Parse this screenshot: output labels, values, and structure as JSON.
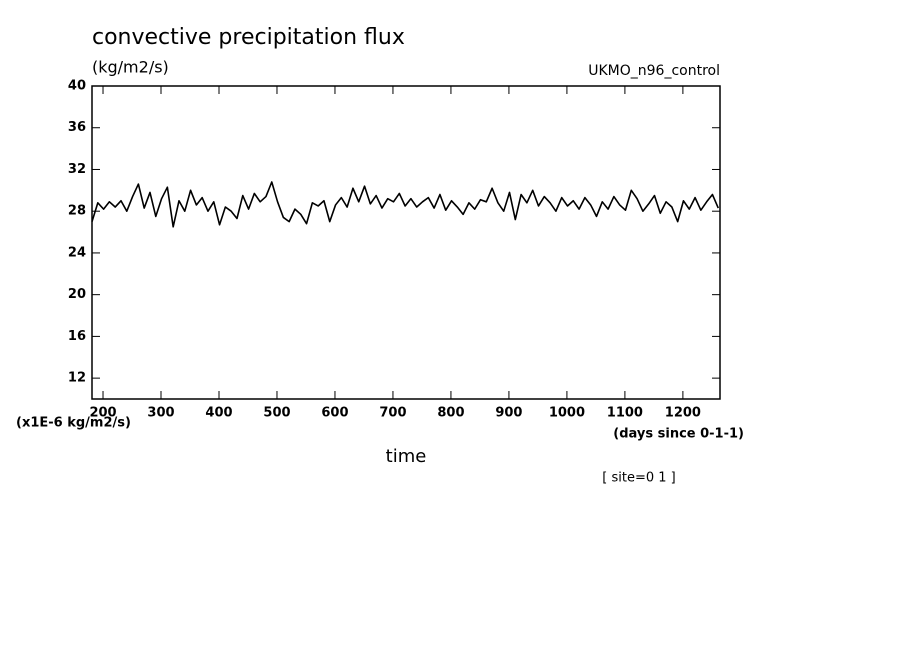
{
  "chart_data": {
    "type": "line",
    "title": "convective precipitation flux",
    "units": "(kg/m2/s)",
    "dataset": "UKMO_n96_control",
    "y_scale_label": "(x1E-6 kg/m2/s)",
    "x_units": "(days since 0-1-1)",
    "x_label": "time",
    "site_label": "[ site=0 1 ]",
    "xlim": [
      181,
      1264
    ],
    "ylim": [
      10,
      40
    ],
    "xticks": [
      200,
      300,
      400,
      500,
      600,
      700,
      800,
      900,
      1000,
      1100,
      1200
    ],
    "yticks": [
      12,
      16,
      20,
      24,
      28,
      32,
      36,
      40
    ],
    "x": [
      181,
      191,
      201,
      211,
      221,
      231,
      241,
      251,
      261,
      271,
      281,
      291,
      301,
      311,
      321,
      331,
      341,
      351,
      361,
      371,
      381,
      391,
      401,
      411,
      421,
      431,
      441,
      451,
      461,
      471,
      481,
      491,
      501,
      511,
      521,
      531,
      541,
      551,
      561,
      571,
      581,
      591,
      601,
      611,
      621,
      631,
      641,
      651,
      661,
      671,
      681,
      691,
      701,
      711,
      721,
      731,
      741,
      751,
      761,
      771,
      781,
      791,
      801,
      811,
      821,
      831,
      841,
      851,
      861,
      871,
      881,
      891,
      901,
      911,
      921,
      931,
      941,
      951,
      961,
      971,
      981,
      991,
      1001,
      1011,
      1021,
      1031,
      1041,
      1051,
      1061,
      1071,
      1081,
      1091,
      1101,
      1111,
      1121,
      1131,
      1141,
      1151,
      1161,
      1171,
      1181,
      1191,
      1201,
      1211,
      1221,
      1231,
      1241,
      1251,
      1261
    ],
    "series": [
      {
        "name": "convective precipitation flux",
        "color": "#000000",
        "values": [
          27.0,
          28.8,
          28.2,
          28.9,
          28.4,
          29.0,
          28.0,
          29.4,
          30.6,
          28.3,
          29.8,
          27.5,
          29.2,
          30.3,
          26.5,
          29.0,
          28.0,
          30.0,
          28.6,
          29.3,
          28.0,
          28.9,
          26.7,
          28.4,
          28.0,
          27.3,
          29.5,
          28.2,
          29.7,
          28.9,
          29.4,
          30.8,
          28.9,
          27.4,
          27.0,
          28.2,
          27.7,
          26.8,
          28.8,
          28.5,
          29.0,
          27.0,
          28.6,
          29.3,
          28.4,
          30.2,
          28.9,
          30.4,
          28.7,
          29.5,
          28.3,
          29.2,
          28.9,
          29.7,
          28.5,
          29.2,
          28.4,
          28.9,
          29.3,
          28.3,
          29.6,
          28.1,
          29.0,
          28.4,
          27.7,
          28.8,
          28.2,
          29.1,
          28.9,
          30.2,
          28.8,
          28.0,
          29.8,
          27.2,
          29.6,
          28.8,
          30.0,
          28.5,
          29.4,
          28.8,
          28.0,
          29.3,
          28.5,
          29.0,
          28.2,
          29.3,
          28.6,
          27.5,
          28.9,
          28.2,
          29.4,
          28.6,
          28.1,
          30.0,
          29.2,
          28.0,
          28.7,
          29.5,
          27.8,
          28.9,
          28.4,
          27.0,
          29.0,
          28.2,
          29.3,
          28.1,
          28.9,
          29.6,
          28.3
        ]
      }
    ]
  }
}
